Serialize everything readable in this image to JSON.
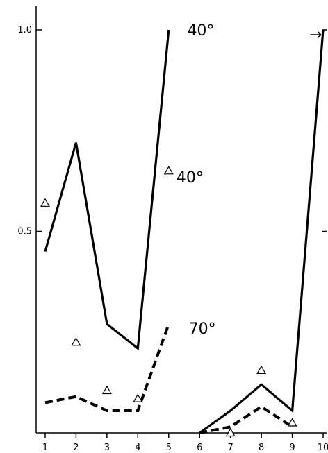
{
  "chart_data": {
    "type": "line",
    "title": "",
    "xlabel": "",
    "ylabel": "",
    "x_ticks": [
      "1",
      "2",
      "3",
      "4",
      "5",
      "6",
      "7",
      "8",
      "9",
      "10"
    ],
    "y_ticks": [
      "0.5",
      "1.0"
    ],
    "ylim": [
      0,
      1.02
    ],
    "xlim": [
      0.9,
      10.2
    ],
    "grid": false,
    "series": [
      {
        "style": "solid",
        "color": "#000000",
        "segments": [
          {
            "x": [
              1,
              2,
              3,
              4,
              5
            ],
            "y": [
              0.45,
              0.72,
              0.27,
              0.21,
              1.0
            ]
          },
          {
            "x": [
              6,
              7,
              8,
              9,
              10
            ],
            "y": [
              0.0,
              0.055,
              0.12,
              0.055,
              1.0
            ]
          }
        ]
      },
      {
        "style": "dashed",
        "color": "#000000",
        "segments": [
          {
            "x": [
              1,
              2,
              3,
              4,
              5
            ],
            "y": [
              0.075,
              0.09,
              0.055,
              0.055,
              0.27
            ]
          },
          {
            "x": [
              6,
              7,
              8,
              9
            ],
            "y": [
              0.0,
              0.015,
              0.065,
              0.015
            ]
          }
        ]
      }
    ],
    "markers": {
      "shape": "triangle",
      "points": [
        {
          "x": 1,
          "y": 0.57
        },
        {
          "x": 2,
          "y": 0.225
        },
        {
          "x": 3,
          "y": 0.105
        },
        {
          "x": 4,
          "y": 0.085
        },
        {
          "x": 5,
          "y": 0.65
        },
        {
          "x": 7,
          "y": 0.0
        },
        {
          "x": 8,
          "y": 0.155
        },
        {
          "x": 9,
          "y": 0.025
        }
      ]
    },
    "annotations": [
      {
        "text": "40°",
        "x": 5.6,
        "y": 1.0
      },
      {
        "text": "40°",
        "x": 5.25,
        "y": 0.635
      },
      {
        "text": "70°",
        "x": 5.65,
        "y": 0.26
      },
      {
        "text": "→",
        "x": 9.55,
        "y": 0.99
      }
    ]
  }
}
